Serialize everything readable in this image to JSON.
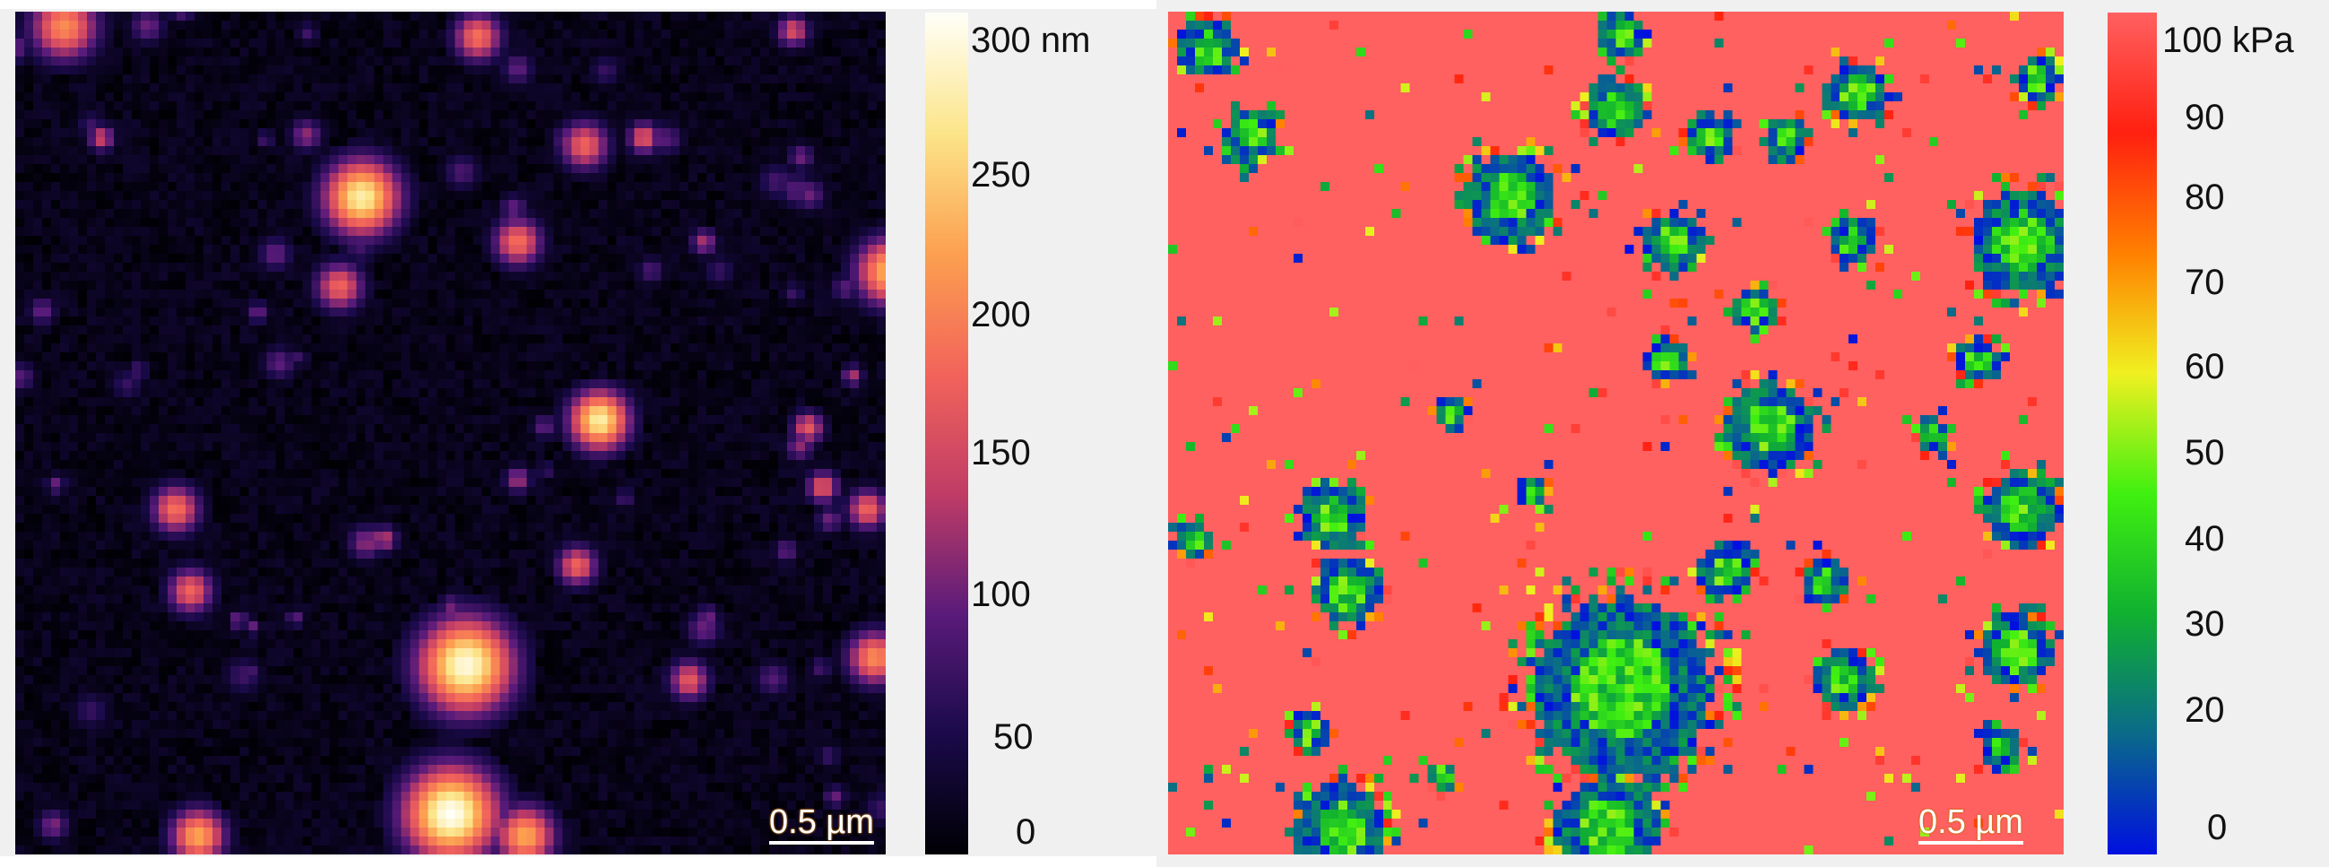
{
  "panels": [
    {
      "id": "height",
      "colorbar": {
        "ticks": [
          "300 nm",
          "250",
          "200",
          "150",
          "100",
          "50",
          "0"
        ],
        "tick_values": [
          300,
          250,
          200,
          150,
          100,
          50,
          0
        ],
        "colors": [
          "#000004",
          "#1a0a4a",
          "#5a1b7a",
          "#c03c66",
          "#f2645a",
          "#fca050",
          "#fce58a",
          "#fffff8"
        ],
        "range": [
          0,
          300
        ],
        "unit": "nm"
      },
      "scale_bar": "0.5 µm"
    },
    {
      "id": "modulus",
      "colorbar": {
        "ticks": [
          "100 kPa",
          "90",
          "80",
          "70",
          "60",
          "50",
          "40",
          "30",
          "20",
          "0"
        ],
        "tick_values": [
          100,
          90,
          80,
          70,
          60,
          50,
          40,
          30,
          20,
          0
        ],
        "colors": [
          "#0010e0",
          "#0a6a8a",
          "#10b030",
          "#40f010",
          "#f0f020",
          "#ff8000",
          "#ff2010",
          "#ff6060"
        ],
        "range": [
          0,
          100
        ],
        "unit": "kPa"
      },
      "scale_bar": "0.5 µm"
    }
  ]
}
